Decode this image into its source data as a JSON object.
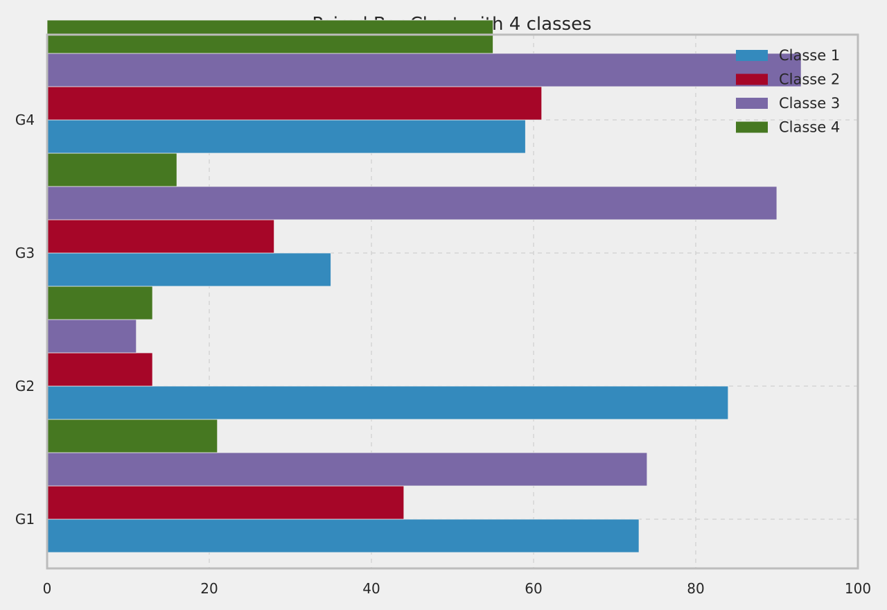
{
  "chart_data": {
    "type": "bar",
    "orientation": "horizontal",
    "title": "Paired Bar Chart with 4 classes",
    "categories": [
      "G1",
      "G2",
      "G3",
      "G4"
    ],
    "series": [
      {
        "name": "Classe 1",
        "values": [
          73,
          84,
          35,
          59
        ],
        "color": "#348abd"
      },
      {
        "name": "Classe 2",
        "values": [
          44,
          13,
          28,
          61
        ],
        "color": "#a60628"
      },
      {
        "name": "Classe 3",
        "values": [
          74,
          11,
          90,
          93
        ],
        "color": "#7a68a6"
      },
      {
        "name": "Classe 4",
        "values": [
          21,
          13,
          16,
          55
        ],
        "color": "#467821"
      }
    ],
    "xlim": [
      0,
      100
    ],
    "x_ticks": [
      0,
      20,
      40,
      60,
      80,
      100
    ],
    "grid": true,
    "legend_position": "top-right",
    "colors": {
      "page_background": "#f0f0f0",
      "plot_background": "#eeeeee",
      "frame": "#bcbcbc",
      "grid": "#c8c8c8"
    }
  }
}
